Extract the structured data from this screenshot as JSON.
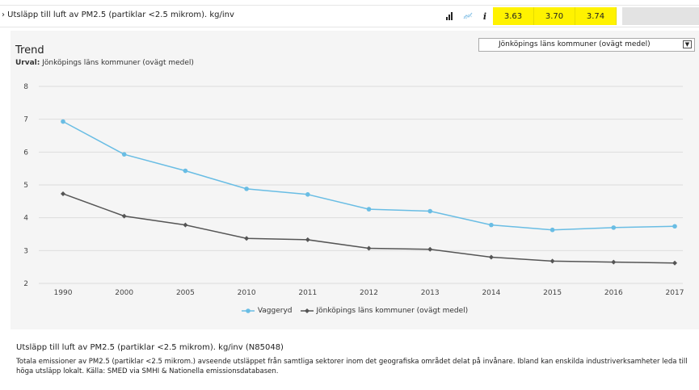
{
  "header": {
    "title": "› Utsläpp till luft av PM2.5 (partiklar <2.5 mikrom). kg/inv",
    "icons": [
      "bar-chart-icon",
      "line-chart-icon",
      "info-icon"
    ],
    "info_glyph": "i",
    "values": [
      "3.63",
      "3.70",
      "3.74"
    ]
  },
  "panel": {
    "title": "Trend",
    "urval_label": "Urval:",
    "urval_value": "Jönköpings läns kommuner (ovägt medel)",
    "select_value": "Jönköpings läns kommuner (ovägt medel)"
  },
  "chart_data": {
    "type": "line",
    "categories": [
      "1990",
      "2000",
      "2005",
      "2010",
      "2011",
      "2012",
      "2013",
      "2014",
      "2015",
      "2016",
      "2017"
    ],
    "ylim": [
      2,
      8
    ],
    "yticks": [
      "2",
      "3",
      "4",
      "5",
      "6",
      "7",
      "8"
    ],
    "grid": true,
    "legend_position": "bottom-center",
    "series": [
      {
        "name": "Vaggeryd",
        "color": "#69bde4",
        "marker": "circle",
        "values": [
          6.93,
          5.93,
          5.43,
          4.88,
          4.71,
          4.26,
          4.2,
          3.78,
          3.63,
          3.7,
          3.74
        ]
      },
      {
        "name": "Jönköpings läns kommuner (ovägt medel)",
        "color": "#555555",
        "marker": "diamond",
        "values": [
          4.73,
          4.05,
          3.78,
          3.37,
          3.33,
          3.07,
          3.04,
          2.8,
          2.68,
          2.65,
          2.62
        ]
      }
    ]
  },
  "description": {
    "title": "Utsläpp till luft av PM2.5 (partiklar <2.5 mikrom). kg/inv (N85048)",
    "text": "Totala emissioner av PM2.5 (partiklar <2.5 mikrom.) avseende utsläppet från samtliga sektorer inom det geografiska området delat på invånare. Ibland kan enskilda industriverksamheter leda till höga utsläpp lokalt. Källa: SMED via SMHI & Nationella emissionsdatabasen."
  }
}
